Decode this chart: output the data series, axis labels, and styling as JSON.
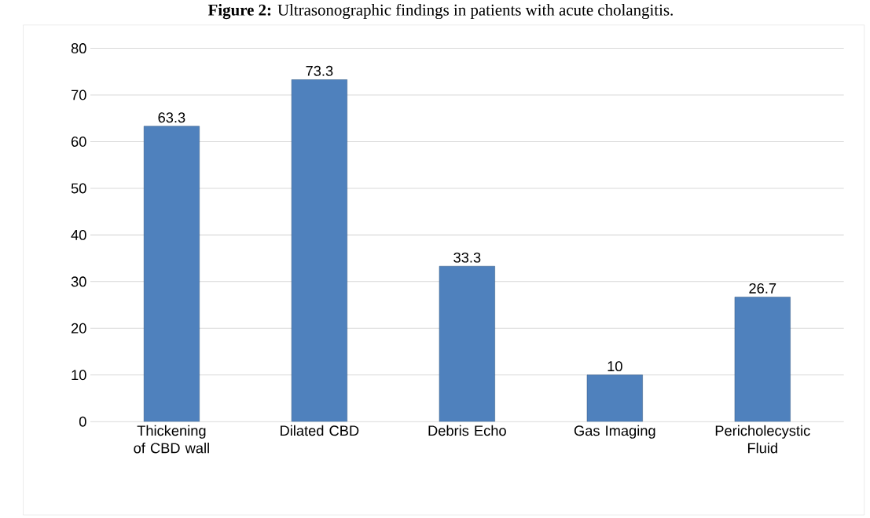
{
  "chart_data": {
    "type": "bar",
    "title": "**Figure 2:** Ultrasonographic findings in patients with acute cholangitis.",
    "categories": [
      "Thickening of CBD wall",
      "Dilated CBD",
      "Debris Echo",
      "Gas Imaging",
      "Pericholecystic Fluid"
    ],
    "values": [
      63.3,
      73.3,
      33.3,
      10,
      26.7
    ],
    "color": "#4f81bd",
    "data_labels": true,
    "ylim": [
      0,
      85
    ],
    "yticks": [
      0,
      10,
      20,
      30,
      40,
      50,
      60,
      70,
      80
    ],
    "grid": "y"
  }
}
